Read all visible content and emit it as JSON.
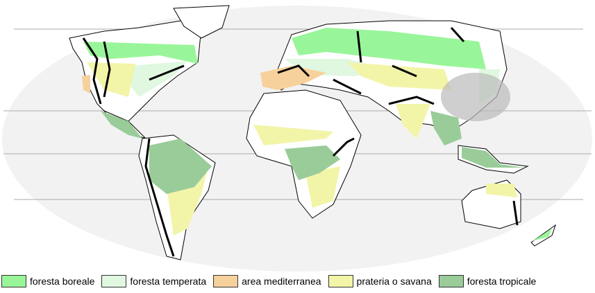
{
  "legend": [
    {
      "label": "foresta boreale",
      "color": "#99f599"
    },
    {
      "label": "foresta temperata",
      "color": "#e0f7e0"
    },
    {
      "label": "area mediterranea",
      "color": "#f7d19b"
    },
    {
      "label": "prateria o savana",
      "color": "#f2f5a8"
    },
    {
      "label": "foresta tropicale",
      "color": "#99cc99"
    }
  ],
  "colors": {
    "ocean": "#f2f2f2",
    "land": "#ffffff",
    "mountains": "#000000",
    "highlight": "#bbbbbb"
  }
}
